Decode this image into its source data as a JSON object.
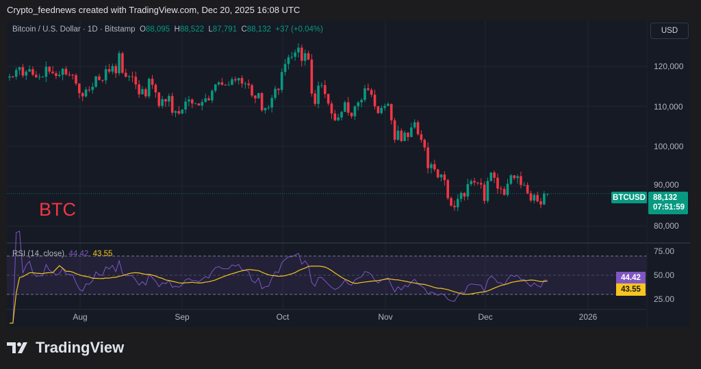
{
  "header": {
    "credit": "Crypto_feednews created with TradingView.com, Dec 20, 2025 16:08 UTC"
  },
  "legend": {
    "title": "Bitcoin / U.S. Dollar · 1D · Bitstamp",
    "open_label": "O",
    "open": "88,095",
    "high_label": "H",
    "high": "88,522",
    "low_label": "L",
    "low": "87,791",
    "close_label": "C",
    "close": "88,132",
    "change": "+37 (+0.04%)"
  },
  "currency_button": "USD",
  "annotation": "BTC",
  "price_axis": [
    "120,000",
    "110,000",
    "100,000",
    "90,000",
    "80,000"
  ],
  "last_price": {
    "symbol": "BTCUSD",
    "price": "88,132",
    "countdown": "07:51:59"
  },
  "rsi": {
    "label": "RSI (14, close)",
    "value": "44.42",
    "ma_value": "43.55",
    "axis": [
      "75.00",
      "50.00",
      "25.00"
    ],
    "bands": [
      70,
      30
    ]
  },
  "time_axis": [
    "Aug",
    "Sep",
    "Oct",
    "Nov",
    "Dec",
    "2026"
  ],
  "brand": "TradingView",
  "colors": {
    "up": "#089981",
    "down": "#f23645",
    "rsi": "#7e57c2",
    "rsi_ma": "#f7c51e",
    "background": "#161a25"
  },
  "chart_data": {
    "type": "candlestick",
    "start_date": "2025-07-11",
    "interval": "1D",
    "unit": "thousand USD",
    "closes": [
      117.5,
      117.4,
      119.1,
      119.8,
      117.7,
      118.7,
      119.3,
      117.9,
      117.3,
      117.4,
      117.4,
      119.9,
      118.7,
      118.3,
      117.6,
      117.9,
      119.4,
      118.0,
      117.9,
      117.8,
      115.7,
      113.3,
      112.5,
      114.2,
      114.1,
      114.9,
      117.5,
      116.6,
      116.5,
      119.3,
      118.7,
      120.1,
      118.3,
      123.3,
      118.4,
      117.4,
      117.5,
      117.4,
      115.5,
      113.0,
      114.3,
      112.5,
      116.9,
      115.4,
      113.5,
      110.1,
      111.8,
      111.2,
      112.6,
      108.4,
      108.8,
      108.2,
      109.2,
      111.2,
      111.7,
      110.7,
      110.7,
      110.2,
      111.1,
      112.0,
      111.5,
      113.9,
      115.5,
      116.0,
      115.4,
      115.3,
      115.4,
      116.8,
      116.5,
      117.1,
      115.7,
      115.7,
      115.3,
      112.7,
      112.0,
      113.3,
      109.0,
      109.6,
      109.7,
      112.1,
      114.4,
      114.1,
      118.6,
      120.6,
      122.3,
      122.4,
      123.5,
      124.7,
      121.4,
      123.3,
      121.7,
      113.2,
      110.6,
      115.2,
      115.3,
      113.1,
      110.7,
      108.2,
      106.5,
      107.2,
      108.6,
      111.0,
      108.4,
      107.5,
      110.0,
      111.0,
      111.6,
      114.5,
      114.1,
      112.9,
      110.0,
      108.3,
      109.6,
      110.1,
      110.6,
      106.5,
      101.6,
      103.9,
      101.3,
      103.4,
      102.3,
      104.7,
      106.0,
      103.0,
      101.6,
      99.7,
      94.5,
      95.5,
      94.2,
      92.2,
      92.9,
      91.5,
      87.0,
      85.1,
      84.7,
      86.8,
      88.3,
      87.4,
      90.5,
      91.3,
      90.9,
      90.8,
      90.4,
      86.3,
      91.3,
      93.4,
      92.1,
      89.4,
      89.3,
      87.8,
      90.6,
      92.7,
      92.0,
      92.5,
      90.3,
      90.3,
      88.2,
      86.4,
      87.8,
      86.2,
      85.4,
      88.1,
      88.132
    ],
    "y_range": [
      77,
      128
    ]
  }
}
